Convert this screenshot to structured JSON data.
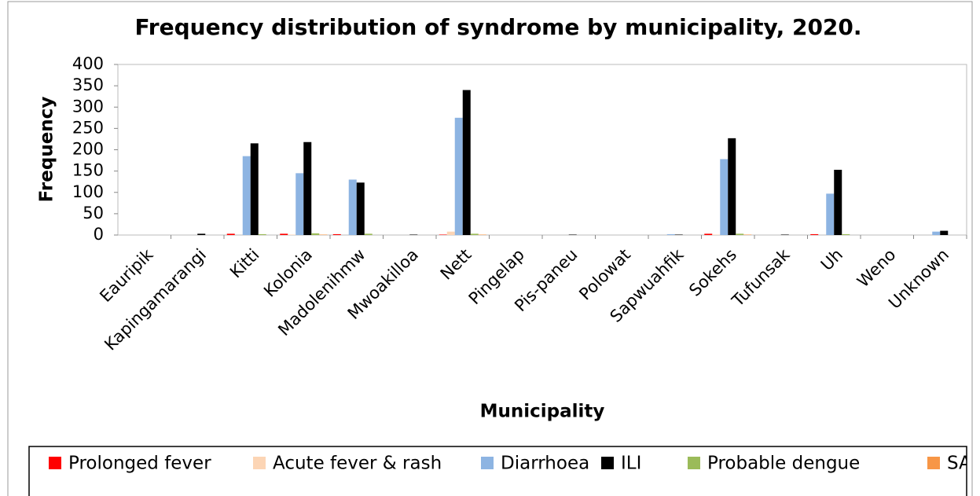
{
  "chart_data": {
    "type": "bar",
    "title": "Frequency distribution of syndrome by municipality, 2020.",
    "x_label": "Municipality",
    "y_label": "Frequency",
    "categories": [
      "Eauripik",
      "Kapingamarangi",
      "Kitti",
      "Kolonia",
      "Madolenihmw",
      "Mwoakilloa",
      "Nett",
      "Pingelap",
      "Pis-paneu",
      "Polowat",
      "Sapwuahfik",
      "Sokehs",
      "Tufunsak",
      "Uh",
      "Weno",
      "Unknown"
    ],
    "series": [
      {
        "name": "Prolonged fever",
        "color": "#ff0000",
        "values": [
          0,
          0,
          3,
          3,
          2,
          0,
          1,
          0,
          0,
          0,
          0,
          3,
          0,
          2,
          0,
          0
        ]
      },
      {
        "name": "Acute fever & rash",
        "color": "#fcd5b5",
        "values": [
          0,
          0,
          0,
          1,
          0,
          0,
          8,
          0,
          0,
          0,
          0,
          1,
          0,
          0,
          0,
          0
        ]
      },
      {
        "name": "Diarrhoea",
        "color": "#8db4e2",
        "values": [
          0,
          0,
          185,
          145,
          130,
          0,
          275,
          0,
          0,
          0,
          2,
          178,
          0,
          97,
          0,
          8
        ]
      },
      {
        "name": "ILI",
        "color": "#000000",
        "values": [
          0,
          3,
          215,
          218,
          123,
          1,
          340,
          0,
          1,
          0,
          1,
          227,
          1,
          153,
          0,
          10
        ]
      },
      {
        "name": "Probable dengue",
        "color": "#9bbb59",
        "values": [
          0,
          0,
          2,
          4,
          3,
          0,
          3,
          0,
          0,
          0,
          0,
          3,
          0,
          2,
          0,
          0
        ]
      },
      {
        "name": "SARI",
        "color": "#f79646",
        "values": [
          0,
          0,
          0,
          1,
          0,
          0,
          1,
          0,
          0,
          0,
          0,
          1,
          0,
          0,
          0,
          0
        ]
      }
    ],
    "ylim": [
      0,
      400
    ],
    "yticks": [
      0,
      50,
      100,
      150,
      200,
      250,
      300,
      350,
      400
    ],
    "grid": false
  }
}
